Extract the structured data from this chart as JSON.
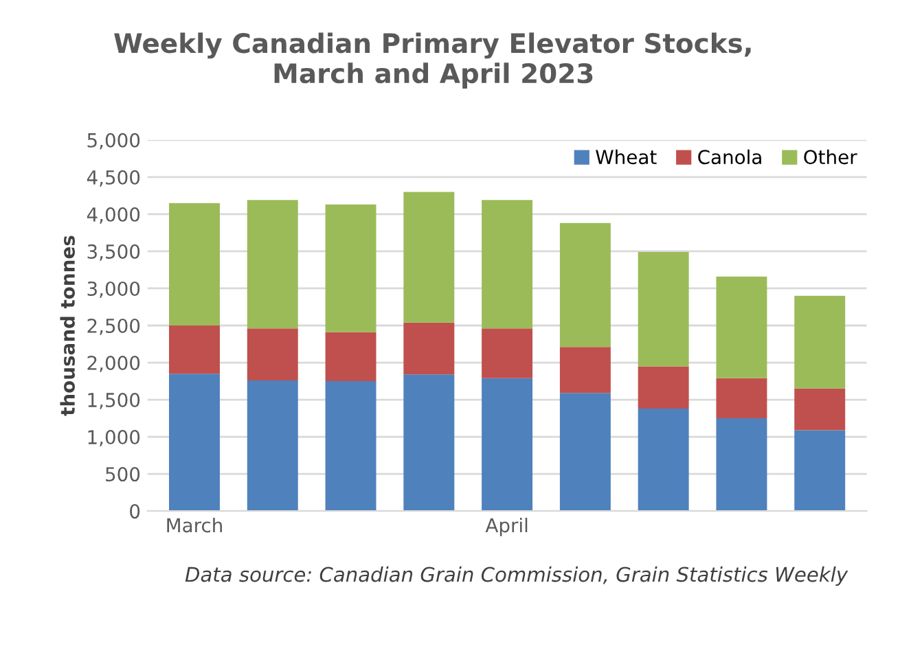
{
  "chart_data": {
    "type": "bar",
    "title": "Weekly Canadian Primary Elevator Stocks,\nMarch and April 2023",
    "ylabel": "thousand tonnes",
    "categories": [
      "March",
      null,
      null,
      null,
      "April",
      null,
      null,
      null,
      null
    ],
    "stacked": true,
    "series": [
      {
        "name": "Wheat",
        "color": "#4f81bd",
        "values": [
          1850,
          1760,
          1750,
          1840,
          1790,
          1590,
          1380,
          1250,
          1090
        ]
      },
      {
        "name": "Canola",
        "color": "#c0504d",
        "values": [
          650,
          700,
          660,
          700,
          670,
          620,
          570,
          540,
          560
        ]
      },
      {
        "name": "Other",
        "color": "#9bbb59",
        "values": [
          1650,
          1730,
          1720,
          1760,
          1730,
          1670,
          1540,
          1370,
          1250
        ]
      }
    ],
    "ylim": [
      0,
      5000
    ],
    "yticks": [
      {
        "value": 0,
        "label": "0"
      },
      {
        "value": 500,
        "label": "500"
      },
      {
        "value": 1000,
        "label": "1,000"
      },
      {
        "value": 1500,
        "label": "1,500"
      },
      {
        "value": 2000,
        "label": "2,000"
      },
      {
        "value": 2500,
        "label": "2,500"
      },
      {
        "value": 3000,
        "label": "3,000"
      },
      {
        "value": 3500,
        "label": "3,500"
      },
      {
        "value": 4000,
        "label": "4,000"
      },
      {
        "value": 4500,
        "label": "4,500"
      },
      {
        "value": 5000,
        "label": "5,000"
      }
    ],
    "grid": "y",
    "legend": "top right",
    "annotations": [
      "Data source: Canadian Grain Commission, Grain Statistics Weekly"
    ]
  }
}
